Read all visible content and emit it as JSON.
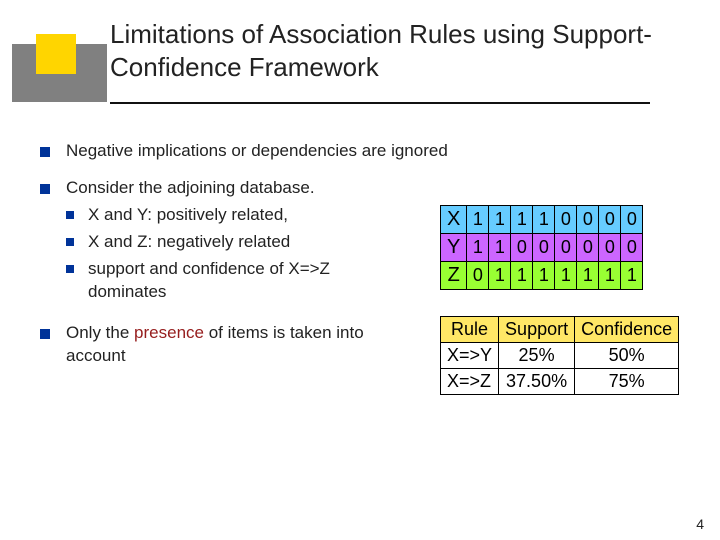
{
  "title": "Limitations of Association Rules using Support-Confidence Framework",
  "bullets": {
    "b1": "Negative implications or dependencies are ignored",
    "b2": "Consider the adjoining database.",
    "b2subs": {
      "s1": "X and Y: positively related,",
      "s2": "X and Z: negatively related",
      "s3": "support and confidence of X=>Z dominates"
    },
    "b3_pre": "Only the ",
    "b3_em": "presence",
    "b3_post": " of items is taken into account"
  },
  "db": {
    "rows": [
      {
        "label": "X",
        "color": "#66ccff",
        "v": [
          "1",
          "1",
          "1",
          "1",
          "0",
          "0",
          "0",
          "0"
        ]
      },
      {
        "label": "Y",
        "color": "#cc66ff",
        "v": [
          "1",
          "1",
          "0",
          "0",
          "0",
          "0",
          "0",
          "0"
        ]
      },
      {
        "label": "Z",
        "color": "#99ff33",
        "v": [
          "0",
          "1",
          "1",
          "1",
          "1",
          "1",
          "1",
          "1"
        ]
      }
    ],
    "cell_fontsize": 18,
    "label_fontsize": 20
  },
  "rules": {
    "header_color": "#ffe766",
    "cols": [
      "Rule",
      "Support",
      "Confidence"
    ],
    "rows": [
      {
        "rule": "X=>Y",
        "support": "25%",
        "confidence": "50%"
      },
      {
        "rule": "X=>Z",
        "support": "37.50%",
        "confidence": "75%"
      }
    ]
  },
  "page_number": "4",
  "accent": {
    "gray": "#808080",
    "yellow": "#ffd500",
    "bullet": "#003399"
  }
}
